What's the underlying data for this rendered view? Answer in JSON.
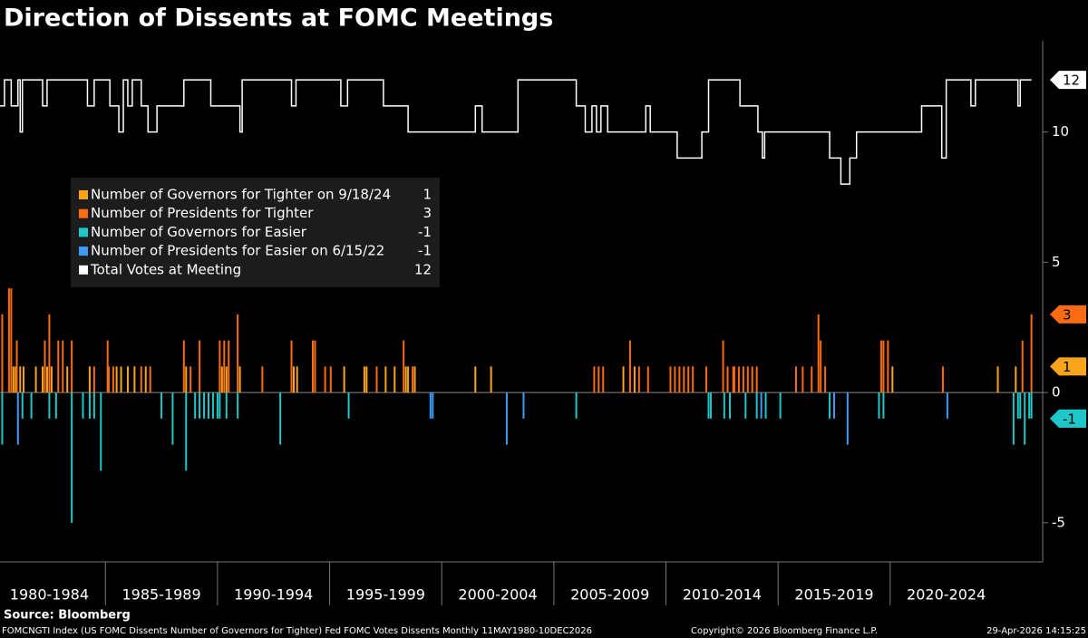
{
  "chart_data": {
    "type": "bar",
    "title": "Direction of Dissents at FOMC Meetings",
    "source": "Source: Bloomberg",
    "footer_left": "FOMCNGTI Index (US FOMC Dissents Number of Governors for Tighter) Fed FOMC Votes Dissents Monthly 11MAY1980-10DEC2026",
    "footer_center": "Copyright© 2026 Bloomberg Finance L.P.",
    "footer_right": "29-Apr-2026 14:15:25",
    "xlim": [
      1980.3,
      2026.8
    ],
    "xticks": [
      {
        "value": 1982.5,
        "label": "1980-1984"
      },
      {
        "value": 1987.5,
        "label": "1985-1989"
      },
      {
        "value": 1992.5,
        "label": "1990-1994"
      },
      {
        "value": 1997.5,
        "label": "1995-1999"
      },
      {
        "value": 2002.5,
        "label": "2000-2004"
      },
      {
        "value": 2007.5,
        "label": "2005-2009"
      },
      {
        "value": 2012.5,
        "label": "2010-2014"
      },
      {
        "value": 2017.5,
        "label": "2015-2019"
      },
      {
        "value": 2022.5,
        "label": "2020-2024"
      }
    ],
    "ylim": [
      -6.5,
      13.5
    ],
    "yticks": [
      10,
      5,
      0,
      -5
    ],
    "series": [
      {
        "name": "Number of Governors for Tighter on 9/18/24",
        "color": "#f8a51c",
        "last_value": 1,
        "x": [
          1980.9,
          1981.0,
          1981.2,
          1981.35,
          1981.9,
          1982.2,
          1982.4,
          1982.6,
          1983.3,
          1984.3,
          1985.5,
          1985.7,
          1986.0,
          1986.3,
          1986.8,
          1988.6,
          1990.2,
          1990.4,
          1991.0,
          1993.4,
          1993.55,
          1995.65,
          1996.55,
          1996.65,
          1997.5,
          1997.9,
          1998.4,
          1998.5,
          1998.8,
          2001.5,
          2002.2,
          2008.1,
          2008.6,
          2020.1,
          2024.8,
          2025.6
        ],
        "values": [
          1,
          1,
          1,
          1,
          1,
          1,
          1,
          1,
          1,
          1,
          1,
          1,
          1,
          1,
          1,
          1,
          1,
          1,
          1,
          1,
          1,
          1,
          1,
          1,
          1,
          1,
          1,
          1,
          1,
          1,
          1,
          1,
          1,
          1,
          1,
          1
        ]
      },
      {
        "name": "Number of Presidents for Tighter",
        "color": "#fa6c12",
        "last_value": 3,
        "x": [
          1980.4,
          1980.7,
          1980.8,
          1981.05,
          1982.3,
          1982.5,
          1982.9,
          1983.1,
          1983.5,
          1984.5,
          1985.1,
          1985.15,
          1985.35,
          1986.6,
          1987.0,
          1988.5,
          1988.8,
          1989.2,
          1990.1,
          1990.3,
          1990.5,
          1990.9,
          1992.0,
          1993.3,
          1994.25,
          1994.35,
          1994.8,
          1995.05,
          1997.1,
          1998.3,
          1998.7,
          2006.8,
          2007.0,
          2007.2,
          2008.4,
          2008.8,
          2009.2,
          2010.2,
          2010.4,
          2010.6,
          2010.8,
          2011.0,
          2011.2,
          2011.8,
          2012.55,
          2012.75,
          2013.0,
          2013.05,
          2013.25,
          2013.45,
          2013.65,
          2013.85,
          2014.05,
          2015.8,
          2016.1,
          2016.5,
          2016.8,
          2016.9,
          2017.1,
          2019.6,
          2019.7,
          2019.9,
          2022.35,
          2025.9,
          2026.3
        ],
        "values": [
          3,
          4,
          4,
          2,
          2,
          3,
          2,
          2,
          2,
          1,
          2,
          1,
          1,
          1,
          1,
          2,
          1,
          2,
          2,
          2,
          2,
          3,
          1,
          2,
          2,
          2,
          1,
          1,
          1,
          2,
          1,
          1,
          1,
          1,
          2,
          1,
          1,
          1,
          1,
          1,
          1,
          1,
          1,
          1,
          2,
          1,
          1,
          1,
          1,
          1,
          1,
          1,
          1,
          1,
          1,
          1,
          3,
          2,
          1,
          2,
          2,
          2,
          1,
          2,
          3
        ]
      },
      {
        "name": "Number of Governors for Easier",
        "color": "#1ec8c8",
        "last_value": -1,
        "x": [
          1980.4,
          1981.3,
          1981.7,
          1982.5,
          1982.8,
          1983.5,
          1984.0,
          1984.3,
          1984.5,
          1984.8,
          1987.5,
          1988.0,
          1988.6,
          1989.0,
          1989.2,
          1989.4,
          1989.6,
          1989.8,
          1990.0,
          1990.1,
          1990.4,
          1990.9,
          1992.8,
          1995.85,
          2006.0,
          2011.9,
          2012.0,
          2012.6,
          2012.85,
          2013.55,
          2014.05,
          2014.45,
          2015.1,
          2017.3,
          2019.5,
          2019.7,
          2025.5,
          2025.7,
          2025.8,
          2026.0,
          2026.2,
          2026.3
        ],
        "values": [
          -2,
          -1,
          -1,
          -1,
          -1,
          -5,
          -1,
          -1,
          -1,
          -3,
          -1,
          -2,
          -3,
          -1,
          -1,
          -1,
          -1,
          -1,
          -1,
          -1,
          -1,
          -1,
          -2,
          -1,
          -1,
          -1,
          -1,
          -1,
          -1,
          -1,
          -1,
          -1,
          -1,
          -1,
          -1,
          -1,
          -2,
          -1,
          -1,
          -2,
          -1,
          -1
        ]
      },
      {
        "name": "Number of Presidents for Easier on 6/15/22",
        "color": "#3c9cf5",
        "last_value": -1,
        "x": [
          1981.1,
          1999.5,
          1999.6,
          2002.9,
          2003.65,
          2014.25,
          2017.5,
          2018.1,
          2022.55
        ],
        "values": [
          -2,
          -1,
          -1,
          -2,
          -1,
          -1,
          -1,
          -2,
          -1
        ]
      },
      {
        "name": "Total Votes at Meeting",
        "color": "#ffffff",
        "last_value": 12,
        "type": "step",
        "x": [
          1980.3,
          1980.5,
          1980.8,
          1981.1,
          1981.2,
          1981.3,
          1982.2,
          1982.4,
          1984.2,
          1984.5,
          1985.2,
          1985.6,
          1985.8,
          1986.0,
          1986.2,
          1986.6,
          1986.9,
          1987.3,
          1988.5,
          1989.7,
          1991.0,
          1991.1,
          1993.3,
          1993.5,
          1995.5,
          1995.8,
          1997.4,
          1998.5,
          2001.5,
          2001.8,
          2003.4,
          2006.0,
          2006.4,
          2006.7,
          2006.9,
          2007.1,
          2007.4,
          2009.1,
          2009.3,
          2010.5,
          2011.6,
          2011.9,
          2013.3,
          2014.1,
          2014.3,
          2014.4,
          2017.3,
          2017.8,
          2018.2,
          2018.5,
          2021.4,
          2022.3,
          2022.5,
          2023.6,
          2023.8,
          2025.7,
          2025.8,
          2026.3
        ],
        "values": [
          11,
          12,
          11,
          12,
          10,
          12,
          11,
          12,
          11,
          12,
          11,
          10,
          12,
          11,
          12,
          11,
          10,
          11,
          12,
          11,
          10,
          12,
          11,
          12,
          11,
          12,
          11,
          10,
          11,
          10,
          12,
          11,
          10,
          11,
          10,
          11,
          10,
          11,
          10,
          9,
          10,
          12,
          11,
          10,
          9,
          10,
          9,
          8,
          9,
          10,
          11,
          9,
          12,
          11,
          12,
          11,
          12,
          12
        ]
      }
    ]
  }
}
